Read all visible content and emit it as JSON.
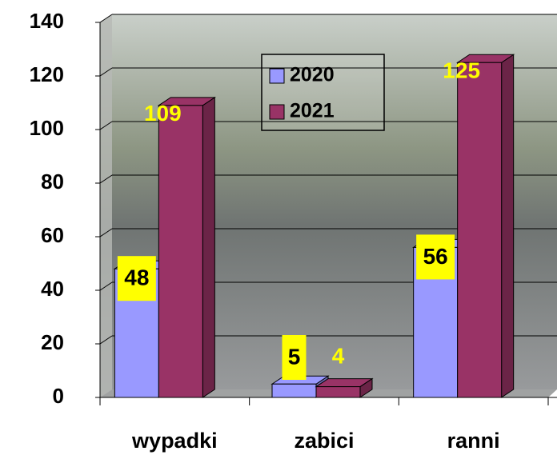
{
  "chart_data": {
    "type": "bar3d",
    "categories": [
      "wypadki",
      "zabici",
      "ranni"
    ],
    "series": [
      {
        "name": "2020",
        "color": "#9999ff",
        "values": [
          48,
          5,
          56
        ]
      },
      {
        "name": "2021",
        "color": "#993366",
        "values": [
          109,
          4,
          125
        ]
      }
    ],
    "ylim": [
      0,
      140
    ],
    "yticks": [
      0,
      20,
      40,
      60,
      80,
      100,
      120,
      140
    ],
    "grid": true,
    "legend": "top"
  }
}
